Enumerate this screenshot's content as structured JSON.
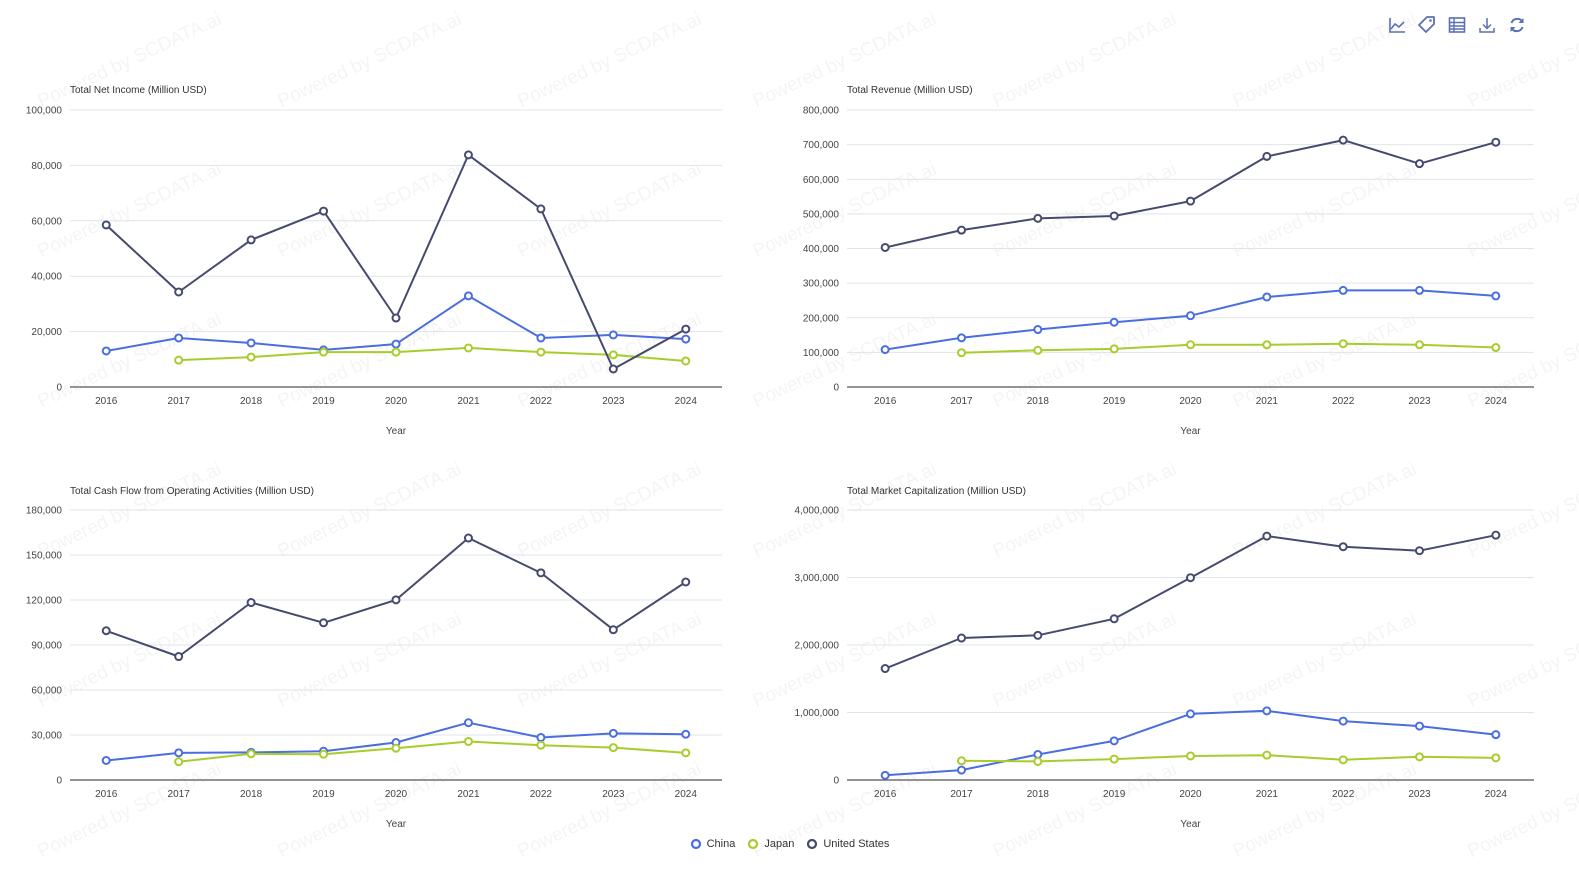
{
  "watermark_text": "Powered by SCDATA.ai",
  "toolbar": {
    "icons": [
      {
        "name": "line-chart-icon",
        "title": "Switch to line chart"
      },
      {
        "name": "tag-icon",
        "title": "Data labels"
      },
      {
        "name": "table-icon",
        "title": "Data view"
      },
      {
        "name": "download-icon",
        "title": "Save as image"
      },
      {
        "name": "refresh-icon",
        "title": "Restore"
      }
    ],
    "color": "#5a6fb6"
  },
  "legend": [
    {
      "name": "China",
      "color": "#4a6ee0"
    },
    {
      "name": "Japan",
      "color": "#a8cc2b"
    },
    {
      "name": "United States",
      "color": "#464a6f"
    }
  ],
  "chart_data": [
    {
      "type": "line",
      "title": "Total Net Income (Million USD)",
      "xlabel": "Year",
      "ylabel": "",
      "categories": [
        "2016",
        "2017",
        "2018",
        "2019",
        "2020",
        "2021",
        "2022",
        "2023",
        "2024"
      ],
      "ylim": [
        0,
        100000
      ],
      "yticks": [
        0,
        20000,
        40000,
        60000,
        80000,
        100000
      ],
      "ytick_labels": [
        "0",
        "20,000",
        "40,000",
        "60,000",
        "80,000",
        "100,000"
      ],
      "grid": true,
      "series": [
        {
          "name": "China",
          "values": [
            13000,
            17700,
            15900,
            13400,
            15500,
            32900,
            17700,
            18800,
            17300
          ]
        },
        {
          "name": "Japan",
          "values": [
            null,
            9700,
            10800,
            12600,
            12600,
            14100,
            12600,
            11600,
            9400
          ]
        },
        {
          "name": "United States",
          "values": [
            58500,
            34300,
            53100,
            63500,
            24900,
            83800,
            64300,
            6500,
            20900
          ]
        }
      ]
    },
    {
      "type": "line",
      "title": "Total Revenue (Million USD)",
      "xlabel": "Year",
      "ylabel": "",
      "categories": [
        "2016",
        "2017",
        "2018",
        "2019",
        "2020",
        "2021",
        "2022",
        "2023",
        "2024"
      ],
      "ylim": [
        0,
        800000
      ],
      "yticks": [
        0,
        100000,
        200000,
        300000,
        400000,
        500000,
        600000,
        700000,
        800000
      ],
      "ytick_labels": [
        "0",
        "100,000",
        "200,000",
        "300,000",
        "400,000",
        "500,000",
        "600,000",
        "700,000",
        "800,000"
      ],
      "grid": true,
      "series": [
        {
          "name": "China",
          "values": [
            108000,
            142000,
            166000,
            187000,
            206000,
            260000,
            279000,
            279000,
            263000
          ]
        },
        {
          "name": "Japan",
          "values": [
            null,
            99000,
            106000,
            110000,
            122000,
            122000,
            125000,
            122000,
            114000
          ]
        },
        {
          "name": "United States",
          "values": [
            403000,
            453000,
            487000,
            494000,
            537000,
            666000,
            713000,
            645000,
            707000
          ]
        }
      ]
    },
    {
      "type": "line",
      "title": "Total Cash Flow from Operating Activities (Million USD)",
      "xlabel": "Year",
      "ylabel": "",
      "categories": [
        "2016",
        "2017",
        "2018",
        "2019",
        "2020",
        "2021",
        "2022",
        "2023",
        "2024"
      ],
      "ylim": [
        0,
        180000
      ],
      "yticks": [
        0,
        30000,
        60000,
        90000,
        120000,
        150000,
        180000
      ],
      "ytick_labels": [
        "0",
        "30,000",
        "60,000",
        "90,000",
        "120,000",
        "150,000",
        "180,000"
      ],
      "grid": true,
      "series": [
        {
          "name": "China",
          "values": [
            13000,
            18100,
            18400,
            19200,
            25000,
            38200,
            28300,
            31100,
            30500
          ]
        },
        {
          "name": "Japan",
          "values": [
            null,
            12200,
            17500,
            17200,
            21200,
            25700,
            23200,
            21600,
            18100
          ]
        },
        {
          "name": "United States",
          "values": [
            99500,
            82300,
            118300,
            104800,
            120100,
            161300,
            138100,
            100200,
            132000
          ]
        }
      ]
    },
    {
      "type": "line",
      "title": "Total Market Capitalization (Million USD)",
      "xlabel": "Year",
      "ylabel": "",
      "categories": [
        "2016",
        "2017",
        "2018",
        "2019",
        "2020",
        "2021",
        "2022",
        "2023",
        "2024"
      ],
      "ylim": [
        0,
        4000000
      ],
      "yticks": [
        0,
        1000000,
        2000000,
        3000000,
        4000000
      ],
      "ytick_labels": [
        "0",
        "1,000,000",
        "2,000,000",
        "3,000,000",
        "4,000,000"
      ],
      "grid": true,
      "series": [
        {
          "name": "China",
          "values": [
            69000,
            147000,
            378000,
            580000,
            979000,
            1025000,
            873000,
            799000,
            672000
          ]
        },
        {
          "name": "Japan",
          "values": [
            null,
            285000,
            275000,
            310000,
            356000,
            368000,
            299000,
            343000,
            328000
          ]
        },
        {
          "name": "United States",
          "values": [
            1651000,
            2103000,
            2143000,
            2388000,
            2997000,
            3613000,
            3456000,
            3397000,
            3627000
          ]
        }
      ]
    }
  ]
}
